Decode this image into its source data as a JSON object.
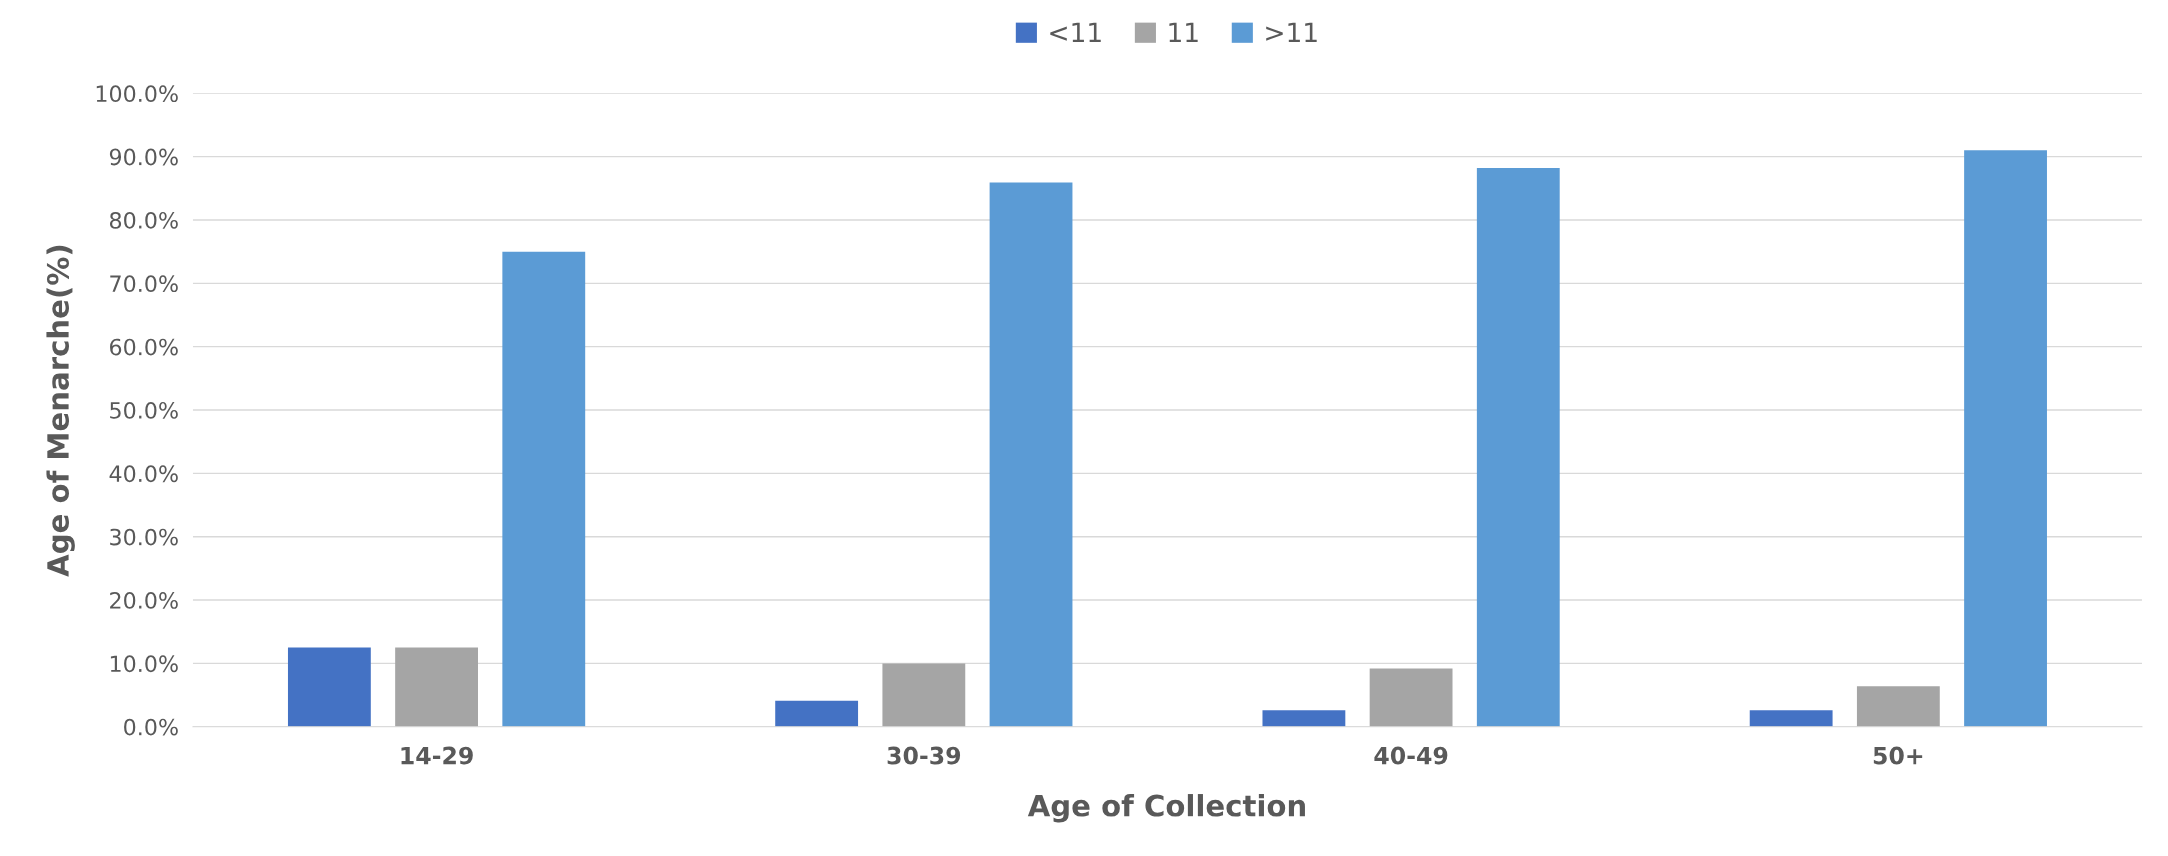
{
  "chart_data": {
    "type": "bar",
    "xlabel": "Age of Collection",
    "ylabel": "Age of Menarche(%)",
    "categories": [
      "14-29",
      "30-39",
      "40-49",
      "50+"
    ],
    "series": [
      {
        "name": "<11",
        "color": "#4472c4",
        "values": [
          12.5,
          4.1,
          2.6,
          2.6
        ]
      },
      {
        "name": "11",
        "color": "#a5a5a5",
        "values": [
          12.5,
          10.0,
          9.2,
          6.4
        ]
      },
      {
        "name": ">11",
        "color": "#5b9bd5",
        "values": [
          75.0,
          85.9,
          88.2,
          91.0
        ]
      }
    ],
    "ylim": [
      0,
      100
    ],
    "yticks": [
      {
        "value": 0,
        "label": "0.0%"
      },
      {
        "value": 10,
        "label": "10.0%"
      },
      {
        "value": 20,
        "label": "20.0%"
      },
      {
        "value": 30,
        "label": "30.0%"
      },
      {
        "value": 40,
        "label": "40.0%"
      },
      {
        "value": 50,
        "label": "50.0%"
      },
      {
        "value": 60,
        "label": "60.0%"
      },
      {
        "value": 70,
        "label": "70.0%"
      },
      {
        "value": 80,
        "label": "80.0%"
      },
      {
        "value": 90,
        "label": "90.0%"
      },
      {
        "value": 100,
        "label": "100.0%"
      }
    ],
    "grid": "y",
    "legend": "top"
  }
}
